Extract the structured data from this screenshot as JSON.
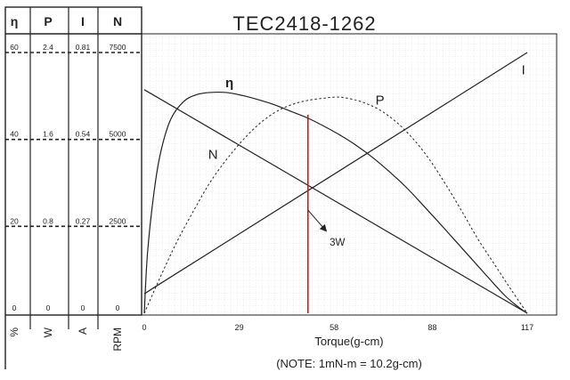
{
  "chart_data": {
    "type": "line",
    "title": "TEC2418-1262",
    "xlabel": "Torque(g-cm)",
    "note": "(NOTE: 1mN-m = 10.2g-cm)",
    "x_ticks": [
      "0",
      "29",
      "58",
      "88",
      "117"
    ],
    "xlim": [
      0,
      117
    ],
    "grid": true,
    "axes": [
      {
        "symbol": "η",
        "unit": "%",
        "ticks": [
          "0",
          "20",
          "40",
          "60"
        ],
        "range": [
          0,
          60
        ]
      },
      {
        "symbol": "P",
        "unit": "W",
        "ticks": [
          "0",
          "0.8",
          "1.6",
          "2.4"
        ],
        "range": [
          0,
          2.4
        ]
      },
      {
        "symbol": "I",
        "unit": "A",
        "ticks": [
          "0",
          "0.27",
          "0.54",
          "0.81"
        ],
        "range": [
          0,
          0.81
        ]
      },
      {
        "symbol": "N",
        "unit": "RPM",
        "ticks": [
          "0",
          "2500",
          "5000",
          "7500"
        ],
        "range": [
          0,
          7500
        ]
      }
    ],
    "series": [
      {
        "name": "η",
        "axis": 0,
        "style": "solid",
        "x": [
          0,
          1,
          3,
          5,
          8,
          12,
          16,
          20,
          25,
          30,
          35,
          40,
          45,
          50,
          55,
          60,
          65,
          70,
          75,
          80,
          85,
          90,
          95,
          100,
          105,
          110,
          114,
          117
        ],
        "y": [
          0,
          14,
          28,
          37,
          44.5,
          48.7,
          50.3,
          50.8,
          50.8,
          50.1,
          49.1,
          47.9,
          46.4,
          44.9,
          43.0,
          40.9,
          38.5,
          35.7,
          32.5,
          29.0,
          25.0,
          20.9,
          16.7,
          12.5,
          8.3,
          4.2,
          1.6,
          0
        ]
      },
      {
        "name": "P",
        "axis": 1,
        "style": "dotted",
        "x": [
          0,
          5,
          10,
          15,
          20,
          25,
          30,
          35,
          40,
          45,
          50,
          55,
          58.5,
          62,
          67,
          72,
          77,
          82,
          87,
          92,
          97,
          102,
          107,
          112,
          117
        ],
        "y": [
          0,
          0.34,
          0.66,
          0.94,
          1.2,
          1.41,
          1.59,
          1.74,
          1.85,
          1.92,
          1.96,
          1.98,
          1.99,
          1.98,
          1.94,
          1.87,
          1.76,
          1.61,
          1.42,
          1.19,
          0.94,
          0.68,
          0.45,
          0.22,
          0
        ]
      },
      {
        "name": "I",
        "axis": 2,
        "style": "solid",
        "x": [
          0,
          3,
          117
        ],
        "y": [
          0.06,
          0.08,
          0.81
        ]
      },
      {
        "name": "N",
        "axis": 3,
        "style": "solid",
        "x": [
          0,
          117
        ],
        "y": [
          6430,
          0
        ]
      }
    ],
    "annotations": [
      {
        "text": "3W",
        "x": 50,
        "axis": 1,
        "y_at": 0.95
      }
    ],
    "curve_labels": [
      {
        "text": "η",
        "x": 26,
        "y": 52
      },
      {
        "text": "P",
        "x": 72,
        "y": 48
      },
      {
        "text": "N",
        "x": 21,
        "y": 35.5
      },
      {
        "text": "I",
        "x": 118,
        "y": 55
      }
    ],
    "highlight": {
      "x": 50,
      "color": "#e01010"
    }
  }
}
